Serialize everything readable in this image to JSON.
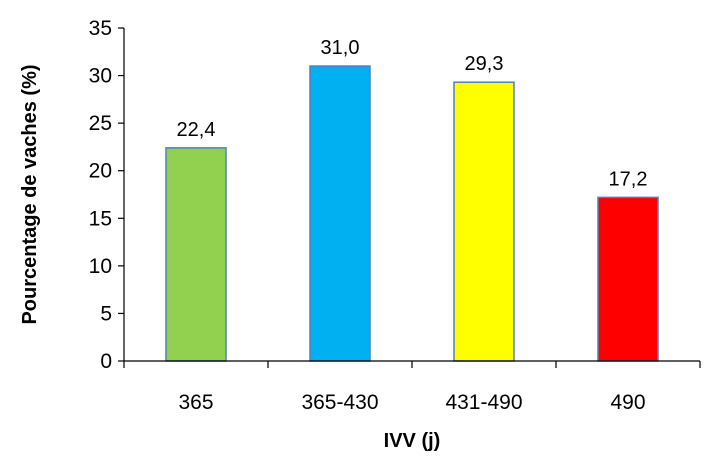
{
  "chart_data": {
    "type": "bar",
    "categories": [
      "365",
      "365-430",
      "431-490",
      "490"
    ],
    "values": [
      22.4,
      31.0,
      29.3,
      17.2
    ],
    "data_labels": [
      "22,4",
      "31,0",
      "29,3",
      "17,2"
    ],
    "colors": [
      "#92d050",
      "#00b0f0",
      "#ffff00",
      "#ff0000"
    ],
    "bar_edge_color": "#4f81bd",
    "xlabel": "IVV (j)",
    "ylabel": "Pourcentage de vaches (%)",
    "ylim": [
      0,
      35
    ],
    "yticks": [
      0,
      5,
      10,
      15,
      20,
      25,
      30,
      35
    ],
    "grid": false,
    "legend": "none"
  }
}
